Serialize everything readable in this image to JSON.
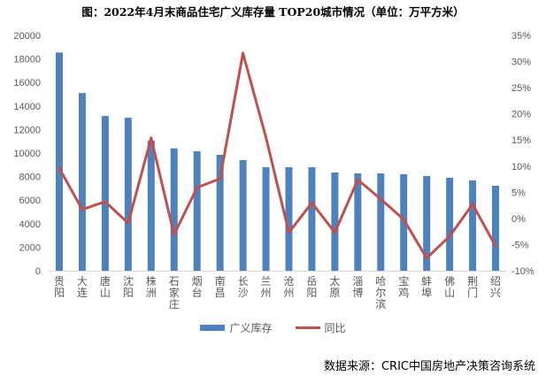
{
  "chart_data": {
    "type": "bar+line",
    "title": "图：2022年4月末商品住宅广义库存量 TOP20城市情况（单位：万平方米）",
    "categories": [
      "贵阳",
      "大连",
      "唐山",
      "沈阳",
      "株洲",
      "石家庄",
      "烟台",
      "南昌",
      "长沙",
      "兰州",
      "沧州",
      "岳阳",
      "太原",
      "淄博",
      "哈尔滨",
      "宝鸡",
      "蚌埠",
      "佛山",
      "荆门",
      "绍兴"
    ],
    "series": [
      {
        "name": "广义库存",
        "type": "bar",
        "axis": "left",
        "color": "#4F81BD",
        "values": [
          18550,
          15100,
          13150,
          13000,
          11050,
          10400,
          10150,
          9850,
          9400,
          8800,
          8800,
          8800,
          8350,
          8270,
          8270,
          8200,
          8050,
          7900,
          7680,
          7220
        ]
      },
      {
        "name": "同比",
        "type": "line",
        "axis": "right",
        "color": "#C0504D",
        "values": [
          9.6,
          1.7,
          3.2,
          -0.9,
          15.4,
          -3.1,
          5.9,
          7.6,
          31.6,
          15.5,
          -2.7,
          3.0,
          -2.7,
          7.4,
          3.7,
          -0.2,
          -7.6,
          -3.4,
          2.7,
          -5.3
        ]
      }
    ],
    "y_left": {
      "range": [
        0,
        20000
      ],
      "ticks": [
        "0",
        "2000",
        "4000",
        "6000",
        "8000",
        "10000",
        "12000",
        "14000",
        "16000",
        "18000",
        "20000"
      ]
    },
    "y_right": {
      "range": [
        -10,
        35
      ],
      "ticks": [
        "-10%",
        "-5%",
        "0%",
        "5%",
        "10%",
        "15%",
        "20%",
        "25%",
        "30%",
        "35%"
      ]
    },
    "grid": false,
    "legend_position": "bottom"
  },
  "source": "数据来源：CRIC中国房地产决策咨询系统"
}
